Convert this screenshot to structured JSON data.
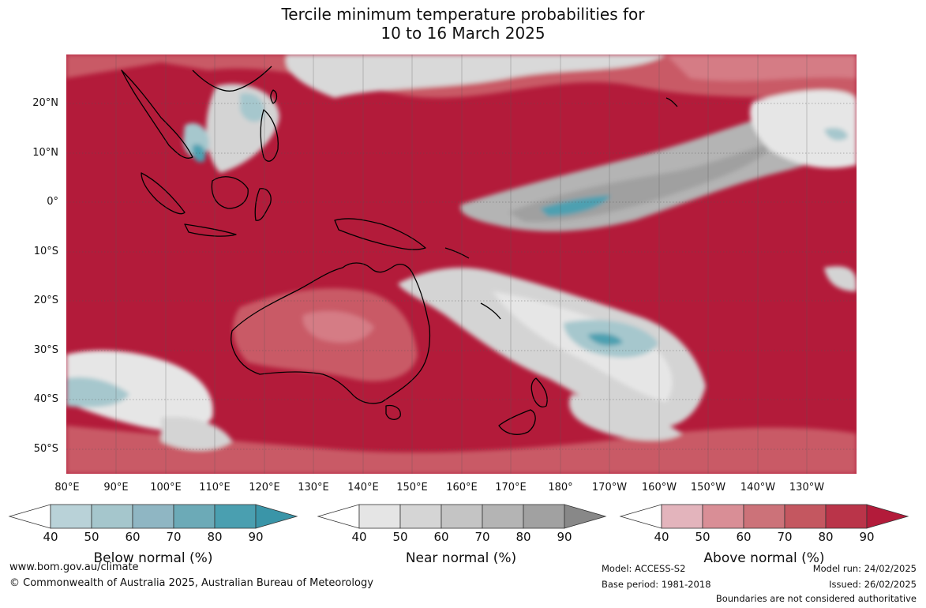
{
  "title": {
    "line1": "Tercile minimum temperature probabilities for",
    "line2": "10 to 16 March 2025"
  },
  "map": {
    "lat_labels": [
      "20°N",
      "10°N",
      "0°",
      "10°S",
      "20°S",
      "30°S",
      "40°S",
      "50°S"
    ],
    "lon_labels": [
      "80°E",
      "90°E",
      "100°E",
      "110°E",
      "120°E",
      "130°E",
      "140°E",
      "150°E",
      "160°E",
      "170°E",
      "180°",
      "170°W",
      "160°W",
      "150°W",
      "140°W",
      "130°W"
    ],
    "colors": {
      "above_90": "#b31b3a",
      "above_80": "#c2384d",
      "above_70": "#c95a66",
      "above_60": "#d57c85",
      "above_50": "#e2a5ad",
      "near_40": "#e6e6e6",
      "near_50": "#d4d4d4",
      "near_70": "#b4b4b4",
      "near_80": "#a0a0a0",
      "below_50": "#a6c7cd",
      "below_80": "#4ea0b1",
      "land_outline": "#000000",
      "grid": "#555555"
    }
  },
  "colorbars": [
    {
      "title": "Below normal (%)",
      "ticks": [
        "40",
        "50",
        "60",
        "70",
        "80",
        "90"
      ],
      "colors": [
        "#ffffff",
        "#b9d2d8",
        "#a5c6cc",
        "#8fb6c3",
        "#6caab7",
        "#4a9fb0",
        "#3a95a8"
      ]
    },
    {
      "title": "Near normal (%)",
      "ticks": [
        "40",
        "50",
        "60",
        "70",
        "80",
        "90"
      ],
      "colors": [
        "#ffffff",
        "#e5e5e5",
        "#d5d5d5",
        "#c4c4c4",
        "#b4b4b4",
        "#a1a1a1",
        "#888888"
      ]
    },
    {
      "title": "Above normal (%)",
      "ticks": [
        "40",
        "50",
        "60",
        "70",
        "80",
        "90"
      ],
      "colors": [
        "#ffffff",
        "#e3b4bc",
        "#d98e96",
        "#cc7279",
        "#c45760",
        "#ba3449",
        "#b31b3a"
      ]
    }
  ],
  "footer": {
    "url": "www.bom.gov.au/climate",
    "copyright": "© Commonwealth of Australia 2025, Australian Bureau of Meteorology",
    "model": "Model: ACCESS-S2",
    "base_period": "Base period: 1981-2018",
    "model_run": "Model run: 24/02/2025",
    "issued": "Issued: 26/02/2025",
    "boundaries": "Boundaries are not considered authoritative"
  }
}
